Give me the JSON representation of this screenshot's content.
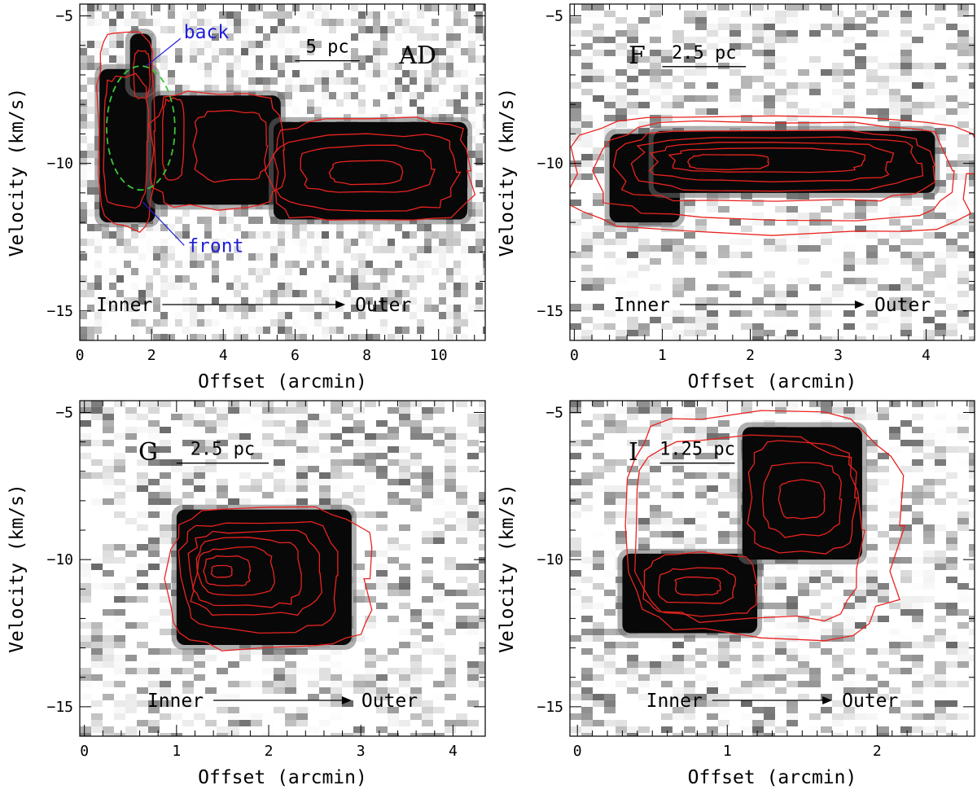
{
  "colors": {
    "contour": "#e8231f",
    "ellipse": "#39c639",
    "annotation": "#1f1fd6",
    "frame": "#000000",
    "emission": "#080808"
  },
  "arrow_text": {
    "inner": "Inner",
    "outer": "Outer"
  },
  "chart_data": [
    {
      "id": "AD",
      "type": "heatmap",
      "description_kind": "position-velocity diagram",
      "panel_label": "AD",
      "scalebar_label": "5 pc",
      "scalebar_x": [
        6.0,
        7.8
      ],
      "scalebar_y": -6.3,
      "xlabel": "Offset (arcmin)",
      "ylabel": "Velocity (km/s)",
      "xlim": [
        0,
        11.3
      ],
      "ylim": [
        -16,
        -4.6
      ],
      "xticks": [
        0,
        2,
        4,
        6,
        8,
        10
      ],
      "yticks": [
        -5,
        -10,
        -15
      ],
      "xminor": 0.5,
      "yminor": 1,
      "annotations": [
        {
          "text": "back",
          "point": [
            1.85,
            -6.7
          ],
          "text_at": [
            2.9,
            -5.6
          ]
        },
        {
          "text": "front",
          "point": [
            1.75,
            -11.3
          ],
          "text_at": [
            3.0,
            -13.0
          ]
        }
      ],
      "ellipse": {
        "center": [
          1.7,
          -8.8
        ],
        "rx": 0.95,
        "ry": 2.1
      },
      "blobs": [
        {
          "x": [
            0.55,
            2.1
          ],
          "y": [
            -12.0,
            -6.8
          ]
        },
        {
          "x": [
            1.4,
            2.0
          ],
          "y": [
            -7.6,
            -5.6
          ]
        },
        {
          "x": [
            2.0,
            5.6
          ],
          "y": [
            -11.4,
            -7.7
          ]
        },
        {
          "x": [
            5.4,
            10.8
          ],
          "y": [
            -11.9,
            -8.6
          ]
        }
      ],
      "contours": [
        {
          "x": [
            0.5,
            2.1
          ],
          "y": [
            -12.2,
            -5.6
          ]
        },
        {
          "x": [
            2.0,
            5.7
          ],
          "y": [
            -11.5,
            -7.6
          ]
        },
        {
          "x": [
            5.3,
            10.9
          ],
          "y": [
            -12.0,
            -8.5
          ]
        },
        {
          "x": [
            0.65,
            1.9
          ],
          "y": [
            -11.5,
            -7.0
          ]
        },
        {
          "x": [
            1.5,
            1.95
          ],
          "y": [
            -7.8,
            -6.2
          ]
        },
        {
          "x": [
            2.3,
            2.9
          ],
          "y": [
            -10.5,
            -7.8
          ]
        },
        {
          "x": [
            3.2,
            5.2
          ],
          "y": [
            -10.6,
            -8.2
          ]
        },
        {
          "x": [
            5.5,
            10.5
          ],
          "y": [
            -11.6,
            -9.0
          ]
        },
        {
          "x": [
            6.2,
            9.8
          ],
          "y": [
            -11.0,
            -9.4
          ]
        },
        {
          "x": [
            7.0,
            9.0
          ],
          "y": [
            -10.7,
            -9.9
          ]
        }
      ],
      "arrow": {
        "from": 2.3,
        "to": 7.4
      }
    },
    {
      "id": "F",
      "type": "heatmap",
      "description_kind": "position-velocity diagram",
      "panel_label": "F",
      "scalebar_label": "2.5 pc",
      "scalebar_x": [
        1.0,
        1.95
      ],
      "scalebar_y": -6.5,
      "xlabel": "Offset (arcmin)",
      "ylabel": "Velocity (km/s)",
      "xlim": [
        -0.05,
        4.55
      ],
      "ylim": [
        -16,
        -4.6
      ],
      "xticks": [
        0,
        1,
        2,
        3,
        4
      ],
      "yticks": [
        -5,
        -10,
        -15
      ],
      "xminor": 0.2,
      "yminor": 1,
      "blobs": [
        {
          "x": [
            0.4,
            1.2
          ],
          "y": [
            -12.0,
            -9.0
          ]
        },
        {
          "x": [
            0.9,
            4.1
          ],
          "y": [
            -11.0,
            -8.9
          ]
        }
      ],
      "contours": [
        {
          "x": [
            -0.05,
            4.55
          ],
          "y": [
            -12.4,
            -8.3
          ]
        },
        {
          "x": [
            0.3,
            4.3
          ],
          "y": [
            -11.9,
            -8.6
          ]
        },
        {
          "x": [
            0.5,
            4.1
          ],
          "y": [
            -11.3,
            -8.9
          ]
        },
        {
          "x": [
            0.7,
            3.9
          ],
          "y": [
            -10.9,
            -9.1
          ]
        },
        {
          "x": [
            0.9,
            3.6
          ],
          "y": [
            -10.6,
            -9.3
          ]
        },
        {
          "x": [
            1.1,
            3.3
          ],
          "y": [
            -10.3,
            -9.5
          ]
        },
        {
          "x": [
            1.3,
            2.2
          ],
          "y": [
            -10.2,
            -9.7
          ]
        }
      ],
      "arrow": {
        "from": 1.2,
        "to": 3.3
      }
    },
    {
      "id": "G",
      "type": "heatmap",
      "description_kind": "position-velocity diagram",
      "panel_label": "G",
      "scalebar_label": "2.5 pc",
      "scalebar_x": [
        1.0,
        2.0
      ],
      "scalebar_y": -6.5,
      "xlabel": "Offset (arcmin)",
      "ylabel": "Velocity (km/s)",
      "xlim": [
        -0.05,
        4.35
      ],
      "ylim": [
        -16,
        -4.6
      ],
      "xticks": [
        0,
        1,
        2,
        3,
        4
      ],
      "yticks": [
        -5,
        -10,
        -15
      ],
      "xminor": 0.2,
      "yminor": 1,
      "blobs": [
        {
          "x": [
            1.0,
            2.9
          ],
          "y": [
            -12.9,
            -8.3
          ]
        }
      ],
      "contours": [
        {
          "x": [
            0.9,
            3.1
          ],
          "y": [
            -13.0,
            -8.3
          ]
        },
        {
          "x": [
            1.05,
            2.75
          ],
          "y": [
            -12.4,
            -8.7
          ]
        },
        {
          "x": [
            1.15,
            2.55
          ],
          "y": [
            -11.9,
            -9.0
          ]
        },
        {
          "x": [
            1.2,
            2.35
          ],
          "y": [
            -11.6,
            -9.3
          ]
        },
        {
          "x": [
            1.25,
            2.05
          ],
          "y": [
            -11.2,
            -9.6
          ]
        },
        {
          "x": [
            1.3,
            1.8
          ],
          "y": [
            -10.9,
            -9.9
          ]
        },
        {
          "x": [
            1.38,
            1.6
          ],
          "y": [
            -10.6,
            -10.2
          ]
        }
      ],
      "arrow": {
        "from": 1.4,
        "to": 2.9
      }
    },
    {
      "id": "I",
      "type": "heatmap",
      "description_kind": "position-velocity diagram",
      "panel_label": "I",
      "scalebar_label": "1.25 pc",
      "scalebar_x": [
        0.55,
        1.05
      ],
      "scalebar_y": -6.5,
      "xlabel": "Offset (arcmin)",
      "ylabel": "Velocity (km/s)",
      "xlim": [
        -0.05,
        2.65
      ],
      "ylim": [
        -16,
        -4.6
      ],
      "xticks": [
        0,
        1,
        2
      ],
      "yticks": [
        -5,
        -10,
        -15
      ],
      "xminor": 0.1,
      "yminor": 1,
      "blobs": [
        {
          "x": [
            0.3,
            1.2
          ],
          "y": [
            -12.5,
            -9.8
          ]
        },
        {
          "x": [
            1.1,
            1.9
          ],
          "y": [
            -10.0,
            -5.5
          ]
        }
      ],
      "contours": [
        {
          "x": [
            0.3,
            2.15
          ],
          "y": [
            -12.6,
            -5.1
          ]
        },
        {
          "x": [
            0.4,
            1.9
          ],
          "y": [
            -12.1,
            -5.9
          ]
        },
        {
          "x": [
            0.45,
            1.2
          ],
          "y": [
            -11.9,
            -9.8
          ]
        },
        {
          "x": [
            0.55,
            1.05
          ],
          "y": [
            -11.5,
            -10.3
          ]
        },
        {
          "x": [
            0.65,
            0.95
          ],
          "y": [
            -11.2,
            -10.6
          ]
        },
        {
          "x": [
            1.15,
            1.85
          ],
          "y": [
            -9.8,
            -6.0
          ]
        },
        {
          "x": [
            1.25,
            1.75
          ],
          "y": [
            -9.2,
            -6.7
          ]
        },
        {
          "x": [
            1.35,
            1.65
          ],
          "y": [
            -8.6,
            -7.3
          ]
        }
      ],
      "arrow": {
        "from": 0.9,
        "to": 1.7
      }
    }
  ]
}
